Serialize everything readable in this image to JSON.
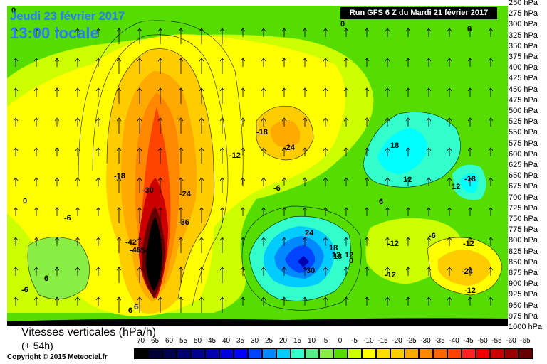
{
  "header": {
    "date": "Jeudi 23 février 2017",
    "local_time": "13:00 locale",
    "run": "Run GFS 6 Z du Mardi 21 février 2017"
  },
  "pressure_levels": [
    "250 hPa",
    "275 hPa",
    "300 hPa",
    "325 hPa",
    "350 hPa",
    "375 hPa",
    "400 hPa",
    "425 hPa",
    "450 hPa",
    "475 hPa",
    "500 hPa",
    "525 hPa",
    "550 hPa",
    "575 hPa",
    "600 hPa",
    "625 hPa",
    "650 hPa",
    "675 hPa",
    "700 hPa",
    "725 hPa",
    "750 hPa",
    "775 hPa",
    "800 hPa",
    "825 hPa",
    "850 hPa",
    "875 hPa",
    "900 hPa",
    "925 hPa",
    "950 hPa",
    "975 hPa",
    "1000 hPa"
  ],
  "legend": {
    "title": "Vitesses verticales (hPa/h)",
    "subtitle": "(+ 54h)",
    "copyright": "Copyright © 2015 Meteociel.fr",
    "scale": [
      {
        "label": "70",
        "color": "#000000"
      },
      {
        "label": "65",
        "color": "#000033"
      },
      {
        "label": "60",
        "color": "#00004d"
      },
      {
        "label": "55",
        "color": "#000070"
      },
      {
        "label": "50",
        "color": "#000090"
      },
      {
        "label": "45",
        "color": "#0000b0"
      },
      {
        "label": "40",
        "color": "#0000d8"
      },
      {
        "label": "35",
        "color": "#0000ff"
      },
      {
        "label": "30",
        "color": "#0044ff"
      },
      {
        "label": "25",
        "color": "#0088ff"
      },
      {
        "label": "20",
        "color": "#00ccff"
      },
      {
        "label": "15",
        "color": "#33ffcc"
      },
      {
        "label": "10",
        "color": "#55ee88"
      },
      {
        "label": "5",
        "color": "#88ee44"
      },
      {
        "label": "0",
        "color": "#55dd00"
      },
      {
        "label": "-5",
        "color": "#ccff00"
      },
      {
        "label": "-10",
        "color": "#ffff00"
      },
      {
        "label": "-15",
        "color": "#ffdd00"
      },
      {
        "label": "-20",
        "color": "#ffcc00"
      },
      {
        "label": "-25",
        "color": "#ffaa00"
      },
      {
        "label": "-30",
        "color": "#ff8800"
      },
      {
        "label": "-35",
        "color": "#ff6600"
      },
      {
        "label": "-40",
        "color": "#ff4400"
      },
      {
        "label": "-45",
        "color": "#ff2222"
      },
      {
        "label": "-50",
        "color": "#ee0000"
      },
      {
        "label": "-55",
        "color": "#cc0000"
      },
      {
        "label": "-60",
        "color": "#990000"
      },
      {
        "label": "-65",
        "color": "#660000"
      }
    ]
  },
  "contour_labels": [
    "0",
    "0",
    "0",
    "0",
    "0",
    "0",
    "-6",
    "-6",
    "-6",
    "-6",
    "6",
    "6",
    "6",
    "6",
    "-12",
    "-12",
    "-12",
    "-12",
    "-12",
    "12",
    "12",
    "12",
    "12",
    "-18",
    "-18",
    "-18",
    "18",
    "18",
    "18",
    "-24",
    "-24",
    "-24",
    "24",
    "-30",
    "30",
    "-36",
    "-42",
    "-48",
    "-54"
  ],
  "colors": {
    "green": "#55dd00",
    "yellow": "#ffff00",
    "orange": "#ffaa00",
    "red": "#ee0000",
    "blue": "#0066ff"
  }
}
